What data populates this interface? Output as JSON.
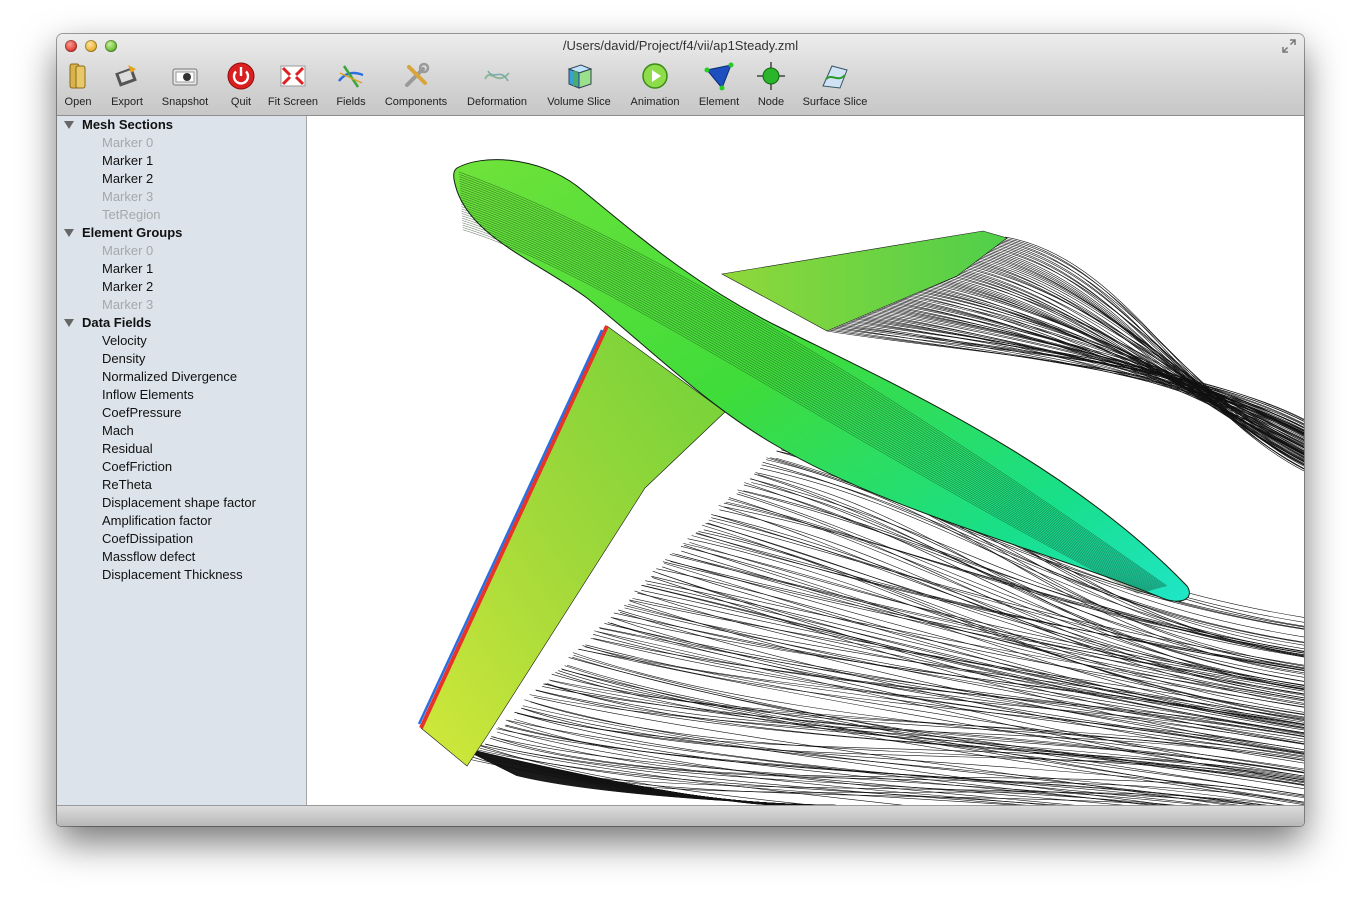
{
  "window": {
    "title": "/Users/david/Project/f4/vii/ap1Steady.zml"
  },
  "toolbar": {
    "items": [
      {
        "label": "Open",
        "icon": "open-icon"
      },
      {
        "label": "Export",
        "icon": "export-icon"
      },
      {
        "label": "Snapshot",
        "icon": "snapshot-icon"
      },
      {
        "label": "Quit",
        "icon": "quit-icon"
      },
      {
        "label": "Fit Screen",
        "icon": "fit-screen-icon"
      },
      {
        "label": "Fields",
        "icon": "fields-icon"
      },
      {
        "label": "Components",
        "icon": "components-icon"
      },
      {
        "label": "Deformation",
        "icon": "deformation-icon"
      },
      {
        "label": "Volume Slice",
        "icon": "volume-slice-icon"
      },
      {
        "label": "Animation",
        "icon": "animation-icon"
      },
      {
        "label": "Element",
        "icon": "element-icon"
      },
      {
        "label": "Node",
        "icon": "node-icon"
      },
      {
        "label": "Surface Slice",
        "icon": "surface-slice-icon"
      }
    ]
  },
  "sidebar": {
    "mesh_sections": {
      "title": "Mesh Sections",
      "items": [
        {
          "label": "Marker 0",
          "enabled": false
        },
        {
          "label": "Marker 1",
          "enabled": true
        },
        {
          "label": "Marker 2",
          "enabled": true
        },
        {
          "label": "Marker 3",
          "enabled": false
        },
        {
          "label": "TetRegion",
          "enabled": false
        }
      ]
    },
    "element_groups": {
      "title": "Element Groups",
      "items": [
        {
          "label": "Marker 0",
          "enabled": false
        },
        {
          "label": "Marker 1",
          "enabled": true
        },
        {
          "label": "Marker 2",
          "enabled": true
        },
        {
          "label": "Marker 3",
          "enabled": false
        }
      ]
    },
    "data_fields": {
      "title": "Data Fields",
      "items": [
        {
          "label": "Velocity"
        },
        {
          "label": "Density"
        },
        {
          "label": "Normalized Divergence"
        },
        {
          "label": "Inflow Elements"
        },
        {
          "label": "CoefPressure"
        },
        {
          "label": "Mach"
        },
        {
          "label": "Residual"
        },
        {
          "label": "CoefFriction"
        },
        {
          "label": "ReTheta"
        },
        {
          "label": "Displacement shape factor"
        },
        {
          "label": "Amplification factor"
        },
        {
          "label": "CoefDissipation"
        },
        {
          "label": "Massflow defect"
        },
        {
          "label": "Displacement Thickness"
        }
      ]
    }
  },
  "colors": {
    "sidebar_bg": "#dce3ea",
    "disabled_text": "#a4a8ac",
    "fuselage_green": "#3fdc3a",
    "fuselage_cyan": "#1fe6c8",
    "leading_edge_red": "#e8332a",
    "leading_edge_blue": "#2a6fe0"
  }
}
